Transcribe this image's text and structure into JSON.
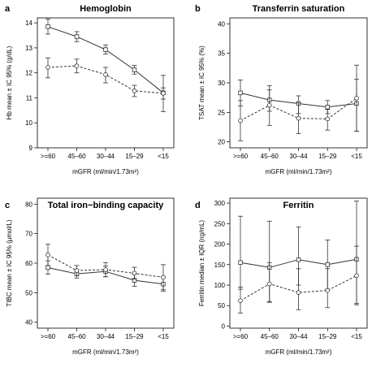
{
  "chart_data": [
    {
      "type": "line",
      "panel_letter": "a",
      "title": "Hemoglobin",
      "xlabel": "mGFR (ml/min/1.73m²)",
      "ylabel": "Hb mean ± IC 95% (g/dL)",
      "categories": [
        ">=60",
        "45–60",
        "30–44",
        "15–29",
        "<15"
      ],
      "ylim": [
        9,
        14.2
      ],
      "yticks": [
        9,
        10,
        11,
        12,
        13,
        14
      ],
      "series": [
        {
          "style": "solid",
          "marker": "square",
          "values": [
            13.85,
            13.45,
            12.93,
            12.12,
            11.2
          ],
          "low": [
            13.55,
            13.25,
            12.75,
            11.95,
            10.45
          ],
          "high": [
            14.15,
            13.65,
            13.12,
            12.3,
            11.9
          ]
        },
        {
          "style": "dashed",
          "marker": "circle",
          "values": [
            12.22,
            12.28,
            11.93,
            11.28,
            11.18
          ],
          "low": [
            11.8,
            12.0,
            11.6,
            11.05,
            10.95
          ],
          "high": [
            12.6,
            12.55,
            12.22,
            11.5,
            11.4
          ]
        }
      ]
    },
    {
      "type": "line",
      "panel_letter": "b",
      "title": "Transferrin saturation",
      "xlabel": "mGFR (ml/min/1.73m²)",
      "ylabel": "TSAT mean ± IC 95% (%)",
      "categories": [
        ">=60",
        "45–60",
        "30–44",
        "15–29",
        "<15"
      ],
      "ylim": [
        19,
        41
      ],
      "yticks": [
        20,
        25,
        30,
        35,
        40
      ],
      "series": [
        {
          "style": "solid",
          "marker": "square",
          "values": [
            28.3,
            27.1,
            26.5,
            25.9,
            26.5
          ],
          "low": [
            26.1,
            25.2,
            24.8,
            24.8,
            21.8
          ],
          "high": [
            30.5,
            28.8,
            27.8,
            27.0,
            30.6
          ]
        },
        {
          "style": "dashed",
          "marker": "circle",
          "values": [
            23.6,
            26.2,
            24.0,
            23.9,
            27.4
          ],
          "low": [
            20.2,
            22.8,
            21.4,
            22.0,
            21.8
          ],
          "high": [
            27.0,
            29.5,
            26.6,
            25.5,
            33.0
          ]
        }
      ]
    },
    {
      "type": "line",
      "panel_letter": "c",
      "title": "Total iron−binding capacity",
      "xlabel": "mGFR (ml/min/1.73m²)",
      "ylabel": "TIBC mean ± IC 95% (µmol/L)",
      "categories": [
        ">=60",
        "45–60",
        "30–44",
        "15–29",
        "<15"
      ],
      "ylim": [
        38,
        82
      ],
      "yticks": [
        40,
        50,
        60,
        70,
        80
      ],
      "series": [
        {
          "style": "solid",
          "marker": "square",
          "values": [
            58.5,
            56.4,
            57.2,
            54.2,
            52.9
          ],
          "low": [
            56.3,
            55.0,
            55.4,
            52.2,
            50.5
          ],
          "high": [
            60.8,
            57.8,
            59.0,
            56.2,
            55.4
          ]
        },
        {
          "style": "dashed",
          "marker": "circle",
          "values": [
            62.8,
            57.5,
            57.8,
            56.6,
            55.2
          ],
          "low": [
            59.2,
            55.8,
            55.4,
            54.6,
            51.0
          ],
          "high": [
            66.4,
            59.2,
            60.2,
            58.6,
            59.5
          ]
        }
      ]
    },
    {
      "type": "line",
      "panel_letter": "d",
      "title": "Ferritin",
      "xlabel": "mGFR (ml/min/1.73m²)",
      "ylabel": "Ferritin median ± IQR (ng/mL)",
      "categories": [
        ">=60",
        "45–60",
        "30–44",
        "15–29",
        "<15"
      ],
      "ylim": [
        -5,
        312
      ],
      "yticks": [
        0,
        50,
        100,
        150,
        200,
        250,
        300
      ],
      "series": [
        {
          "style": "solid",
          "marker": "square",
          "values": [
            155,
            143,
            162,
            150,
            163
          ],
          "low": [
            90,
            60,
            100,
            90,
            55
          ],
          "high": [
            268,
            256,
            242,
            210,
            305
          ]
        },
        {
          "style": "dashed",
          "marker": "circle",
          "values": [
            62,
            103,
            82,
            87,
            123
          ],
          "low": [
            32,
            58,
            40,
            45,
            52
          ],
          "high": [
            95,
            155,
            140,
            140,
            195
          ]
        }
      ]
    }
  ]
}
